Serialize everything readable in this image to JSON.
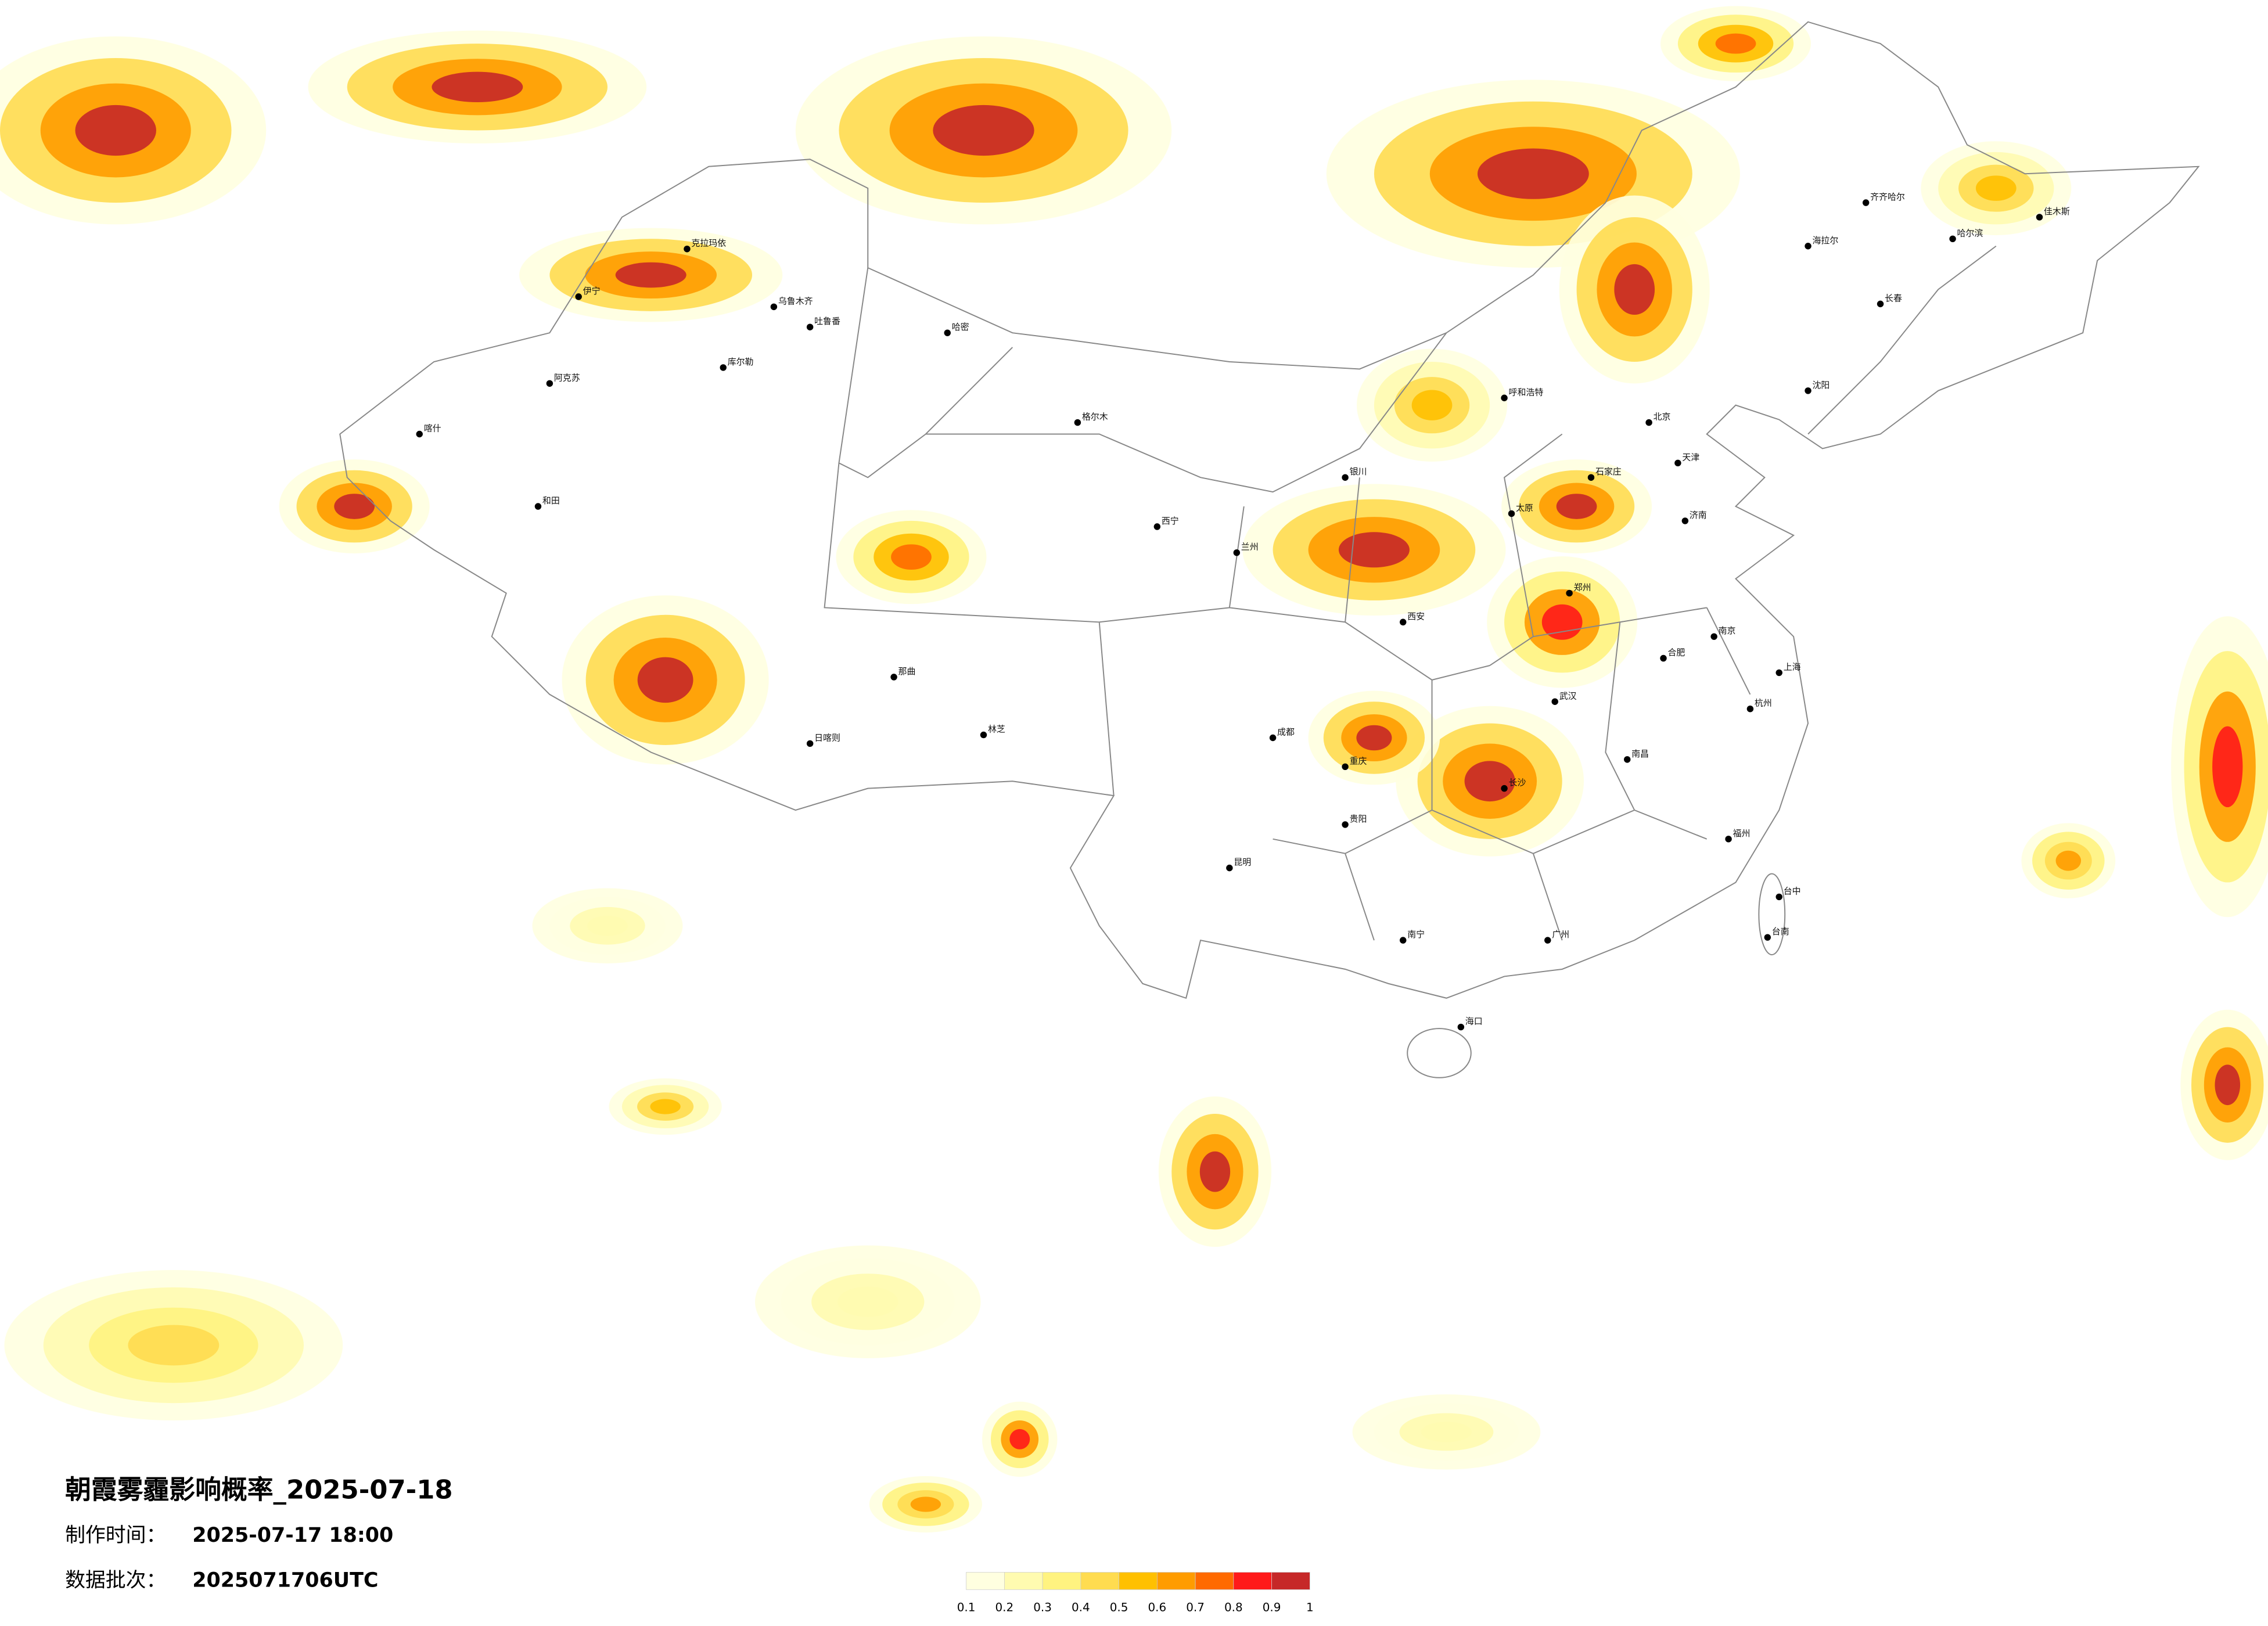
{
  "title": "朝霞雾霾影响概率_2025-07-18",
  "production_time": {
    "label": "制作时间：",
    "value": "2025-07-17 18:00"
  },
  "data_batch": {
    "label": "数据批次：",
    "value": "2025071706UTC"
  },
  "legend": {
    "colors": [
      "#ffffe0",
      "#fffbb0",
      "#fff380",
      "#ffdc50",
      "#ffc000",
      "#ff9c00",
      "#ff6a00",
      "#ff1a1a",
      "#c62828"
    ],
    "ticks": [
      0.1,
      0.2,
      0.3,
      0.4,
      0.5,
      0.6,
      0.7,
      0.8,
      0.9,
      1
    ]
  },
  "cities": [
    "克拉玛依",
    "乌鲁木齐",
    "伊宁",
    "吐鲁番",
    "库尔勒",
    "哈密",
    "阿克苏",
    "喀什",
    "和田",
    "那曲",
    "日喀则",
    "林芝",
    "格尔木",
    "西宁",
    "兰州",
    "银川",
    "呼和浩特",
    "北京",
    "天津",
    "石家庄",
    "太原",
    "济南",
    "郑州",
    "西安",
    "成都",
    "重庆",
    "武汉",
    "长沙",
    "南昌",
    "合肥",
    "南京",
    "上海",
    "杭州",
    "福州",
    "贵阳",
    "昆明",
    "南宁",
    "广州",
    "海口",
    "台中",
    "台南",
    "沈阳",
    "长春",
    "哈尔滨",
    "齐齐哈尔",
    "佳木斯",
    "海拉尔"
  ]
}
